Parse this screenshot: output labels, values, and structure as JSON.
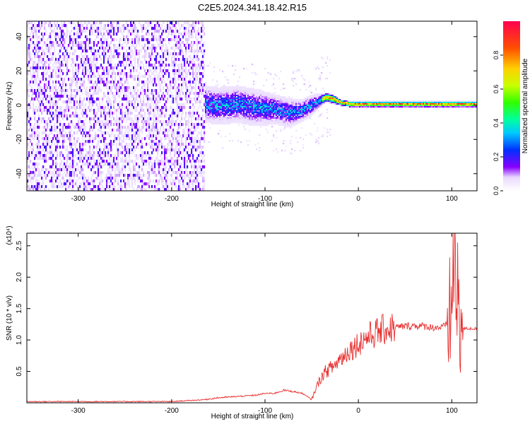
{
  "title": "C2E5.2024.341.18.42.R15",
  "chart_data": [
    {
      "type": "heatmap",
      "xlabel": "Height of straight line (km)",
      "ylabel": "Frequency (Hz)",
      "xlim": [
        -355,
        127
      ],
      "ylim": [
        -50,
        49
      ],
      "xticks": [
        -300,
        -200,
        -100,
        0,
        100
      ],
      "yticks": [
        -40,
        -20,
        0,
        20,
        40
      ],
      "colorbar": {
        "label": "Normalized spectral amplitude",
        "range": [
          0,
          1
        ],
        "ticks": [
          "0.0",
          "0.2",
          "0.4",
          "0.6",
          "0.8"
        ]
      },
      "track": {
        "x": [
          -165,
          -150,
          -130,
          -110,
          -90,
          -75,
          -62,
          -52,
          -42,
          -35,
          -28,
          -20,
          -10,
          0,
          20,
          60,
          100,
          127
        ],
        "freq": [
          1,
          0,
          1,
          -1,
          -2,
          -4,
          -3,
          0,
          3,
          5,
          4,
          2,
          1,
          1,
          1,
          1,
          1,
          1
        ],
        "spread": [
          5,
          5,
          5,
          5,
          4,
          4,
          3,
          3,
          2,
          1.5,
          1.5,
          1,
          1,
          1,
          1,
          1,
          1,
          1
        ],
        "peak_amplitude": [
          0.3,
          0.35,
          0.35,
          0.35,
          0.35,
          0.35,
          0.35,
          0.45,
          0.7,
          0.85,
          0.9,
          0.95,
          0.95,
          0.95,
          0.95,
          0.95,
          0.95,
          0.95
        ]
      },
      "noise_region": {
        "x_start": -355,
        "x_end": -165,
        "amplitude": 0.15
      }
    },
    {
      "type": "line",
      "xlabel": "Height of straight line (km)",
      "ylabel": "SNR (10 * v/v)",
      "y_multiplier": "(x10⁴)",
      "xlim": [
        -355,
        127
      ],
      "ylim": [
        0,
        2.7
      ],
      "xticks": [
        -300,
        -200,
        -100,
        0,
        100
      ],
      "yticks": [
        0.5,
        1.0,
        1.5,
        2.0,
        2.5
      ],
      "ytick_labels": [
        "0.5",
        "1.0",
        "1.5",
        "2.0",
        "2.5"
      ],
      "color": "#e83030",
      "series": [
        {
          "x": [
            -355,
            -300,
            -250,
            -200,
            -165,
            -150,
            -130,
            -110,
            -100,
            -90,
            -80,
            -70,
            -60,
            -50,
            -45,
            -40,
            -35,
            -30,
            -25,
            -20,
            -15,
            -10,
            -5,
            0,
            10,
            20,
            30,
            40,
            50,
            60,
            70,
            80,
            90,
            95,
            100,
            103,
            105,
            107,
            110,
            115,
            120,
            127
          ],
          "values": [
            0.02,
            0.02,
            0.02,
            0.02,
            0.05,
            0.08,
            0.1,
            0.12,
            0.15,
            0.15,
            0.2,
            0.18,
            0.15,
            0.05,
            0.25,
            0.4,
            0.5,
            0.55,
            0.6,
            0.7,
            0.75,
            0.85,
            0.88,
            0.95,
            1.05,
            1.12,
            1.18,
            1.2,
            1.22,
            1.23,
            1.22,
            1.2,
            1.2,
            1.25,
            1.5,
            2.7,
            0.9,
            1.9,
            1.18,
            1.18,
            1.18,
            1.18
          ]
        }
      ]
    }
  ]
}
